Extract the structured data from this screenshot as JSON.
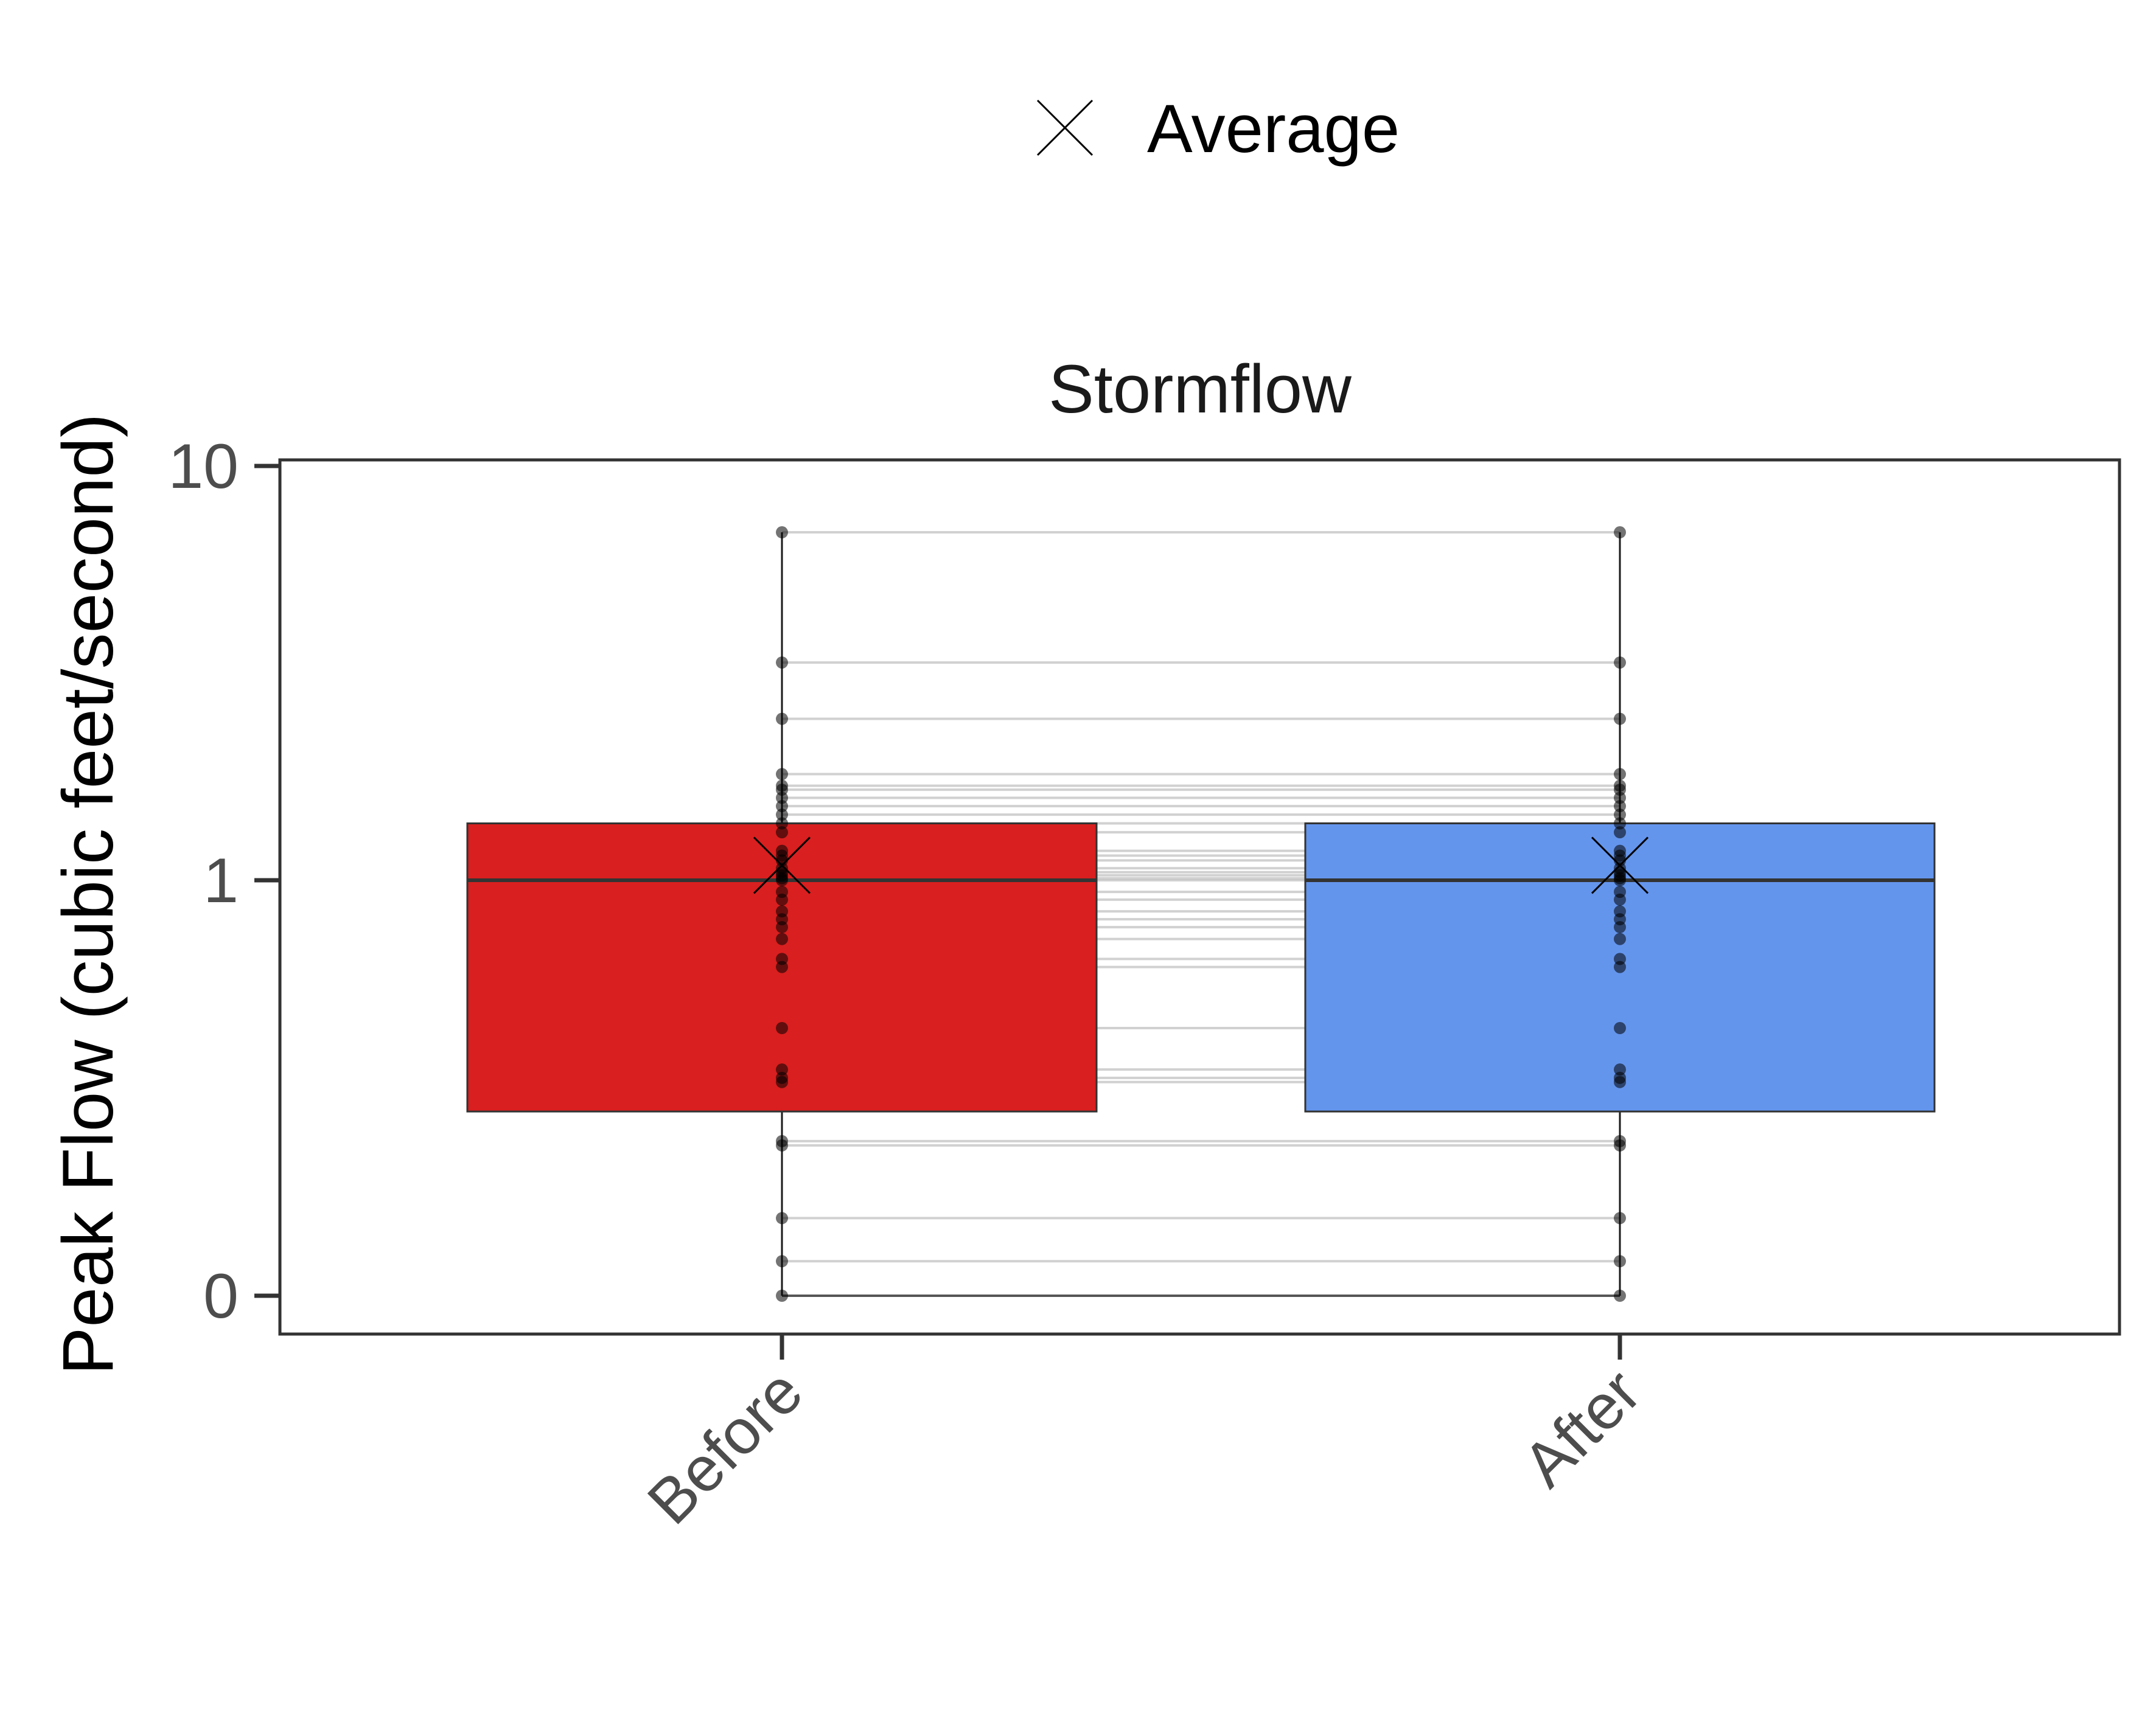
{
  "chart_data": {
    "type": "box",
    "title": "Stormflow",
    "xlabel": "",
    "ylabel": "Peak Flow (cubic feet/second)",
    "y_scale": "pseudo-log",
    "y_ticks": [
      "10",
      "1",
      "0"
    ],
    "categories": [
      "Before",
      "After"
    ],
    "colors": {
      "Before": "#d91f1f",
      "After": "#6495ed"
    },
    "legend": {
      "position": "top",
      "entries": [
        {
          "label": "Average",
          "marker": "x-cross"
        }
      ]
    },
    "boxes": [
      {
        "category": "Before",
        "q1": 0.43,
        "median": 1.0,
        "q3": 1.6,
        "whisker_low": 0.0,
        "whisker_high": 7.4,
        "mean": 1.15
      },
      {
        "category": "After",
        "q1": 0.43,
        "median": 1.0,
        "q3": 1.6,
        "whisker_low": 0.0,
        "whisker_high": 7.4,
        "mean": 1.15
      }
    ],
    "paired_points": [
      0,
      0.08,
      0.18,
      0.35,
      0.36,
      0.5,
      0.51,
      0.53,
      0.63,
      0.78,
      0.8,
      0.85,
      0.88,
      0.9,
      0.92,
      0.95,
      0.97,
      1.0,
      1.02,
      1.05,
      1.08,
      1.12,
      1.2,
      1.25,
      1.3,
      1.5,
      1.6,
      1.7,
      1.8,
      1.9,
      2.0,
      2.05,
      2.2,
      3.0,
      4.0,
      7.4
    ],
    "grid": false
  }
}
